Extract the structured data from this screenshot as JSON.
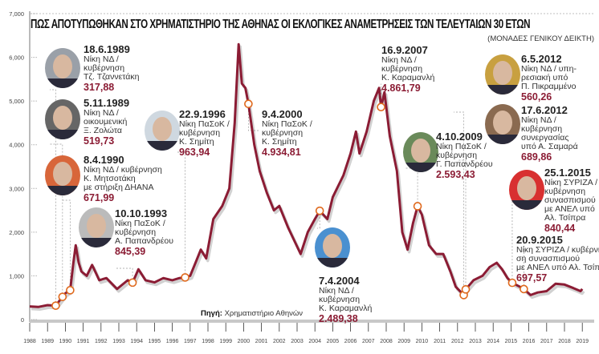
{
  "title": "ΠΩΣ ΑΠΟΤΥΠΩΘΗΚΑΝ ΣΤΟ ΧΡΗΜΑΤΙΣΤΗΡΙΟ ΤΗΣ ΑΘΗΝΑΣ ΟΙ ΕΚΛΟΓΙΚΕΣ ΑΝΑΜΕΤΡΗΣΕΙΣ ΤΩΝ ΤΕΛΕΥΤΑΙΩΝ 30 ΕΤΩΝ",
  "subtitle": "(ΜΟΝΑΔΕΣ ΓΕΝΙΚΟΥ ΔΕΙΚΤΗ)",
  "source_label": "Πηγή:",
  "source_text": "Χρηματιστήριο Αθηνών",
  "colors": {
    "line": "#8b1c34",
    "marker": "#e06a1e",
    "value": "#8b1c34",
    "grid": "#bbbbbb"
  },
  "chart_data": {
    "type": "line",
    "title": "ΠΩΣ ΑΠΟΤΥΠΩΘΗΚΑΝ ΣΤΟ ΧΡΗΜΑΤΙΣΤΗΡΙΟ ΤΗΣ ΑΘΗΝΑΣ ΟΙ ΕΚΛΟΓΙΚΕΣ ΑΝΑΜΕΤΡΗΣΕΙΣ ΤΩΝ ΤΕΛΕΥΤΑΙΩΝ 30 ΕΤΩΝ",
    "ylabel": "(ΜΟΝΑΔΕΣ ΓΕΝΙΚΟΥ ΔΕΙΚΤΗ)",
    "xlim": [
      1988,
      2019
    ],
    "ylim": [
      0,
      7000
    ],
    "yticks": [
      "0",
      "1,000",
      "2,000",
      "3,000",
      "4,000",
      "5,000",
      "6,000",
      "7,000"
    ],
    "xticks": [
      "1988",
      "1989",
      "1990",
      "1991",
      "1992",
      "1993",
      "1994",
      "1995",
      "1996",
      "1997",
      "1998",
      "1999",
      "2000",
      "2001",
      "2002",
      "2003",
      "2004",
      "2005",
      "2006",
      "2007",
      "2008",
      "2009",
      "2010",
      "2011",
      "2012",
      "2013",
      "2014",
      "2015",
      "2016",
      "2017",
      "2018",
      "2019"
    ],
    "grid": false,
    "series": [
      {
        "x": [
          1988.0,
          1988.5,
          1989.0,
          1989.46,
          1989.84,
          1990.0,
          1990.27,
          1990.45,
          1990.58,
          1990.75,
          1990.9,
          1991.2,
          1991.5,
          1991.9,
          1992.3,
          1992.9,
          1993.5,
          1993.77,
          1994.1,
          1994.5,
          1995.0,
          1995.5,
          1996.0,
          1996.4,
          1996.72,
          1997.0,
          1997.3,
          1997.6,
          1997.9,
          1998.3,
          1998.8,
          1999.2,
          1999.5,
          1999.72,
          1999.9,
          2000.1,
          2000.27,
          2000.6,
          2000.9,
          2001.3,
          2001.7,
          2002.0,
          2002.5,
          2003.2,
          2003.6,
          2004.0,
          2004.27,
          2004.7,
          2005.0,
          2005.6,
          2006.0,
          2006.3,
          2006.5,
          2006.9,
          2007.3,
          2007.6,
          2007.71,
          2007.9,
          2008.2,
          2008.6,
          2008.9,
          2009.2,
          2009.5,
          2009.76,
          2010.0,
          2010.4,
          2010.8,
          2011.2,
          2011.6,
          2011.9,
          2012.35,
          2012.46,
          2012.9,
          2013.4,
          2013.8,
          2014.2,
          2014.5,
          2014.8,
          2015.07,
          2015.5,
          2015.72,
          2016.1,
          2016.5,
          2017.0,
          2017.5,
          2018.0,
          2018.5,
          2018.9,
          2019.0
        ],
        "y": [
          300,
          290,
          330,
          318,
          520,
          600,
          672,
          1300,
          1700,
          1300,
          1100,
          1000,
          1250,
          900,
          950,
          700,
          900,
          845,
          1150,
          900,
          850,
          950,
          900,
          950,
          964,
          1000,
          1300,
          1600,
          1400,
          2300,
          2600,
          3000,
          4500,
          6300,
          5400,
          5300,
          4935,
          4000,
          3400,
          2900,
          2500,
          2600,
          2100,
          1500,
          2000,
          2300,
          2489,
          2300,
          2800,
          3300,
          3800,
          4300,
          3800,
          4300,
          5000,
          5300,
          4862,
          5200,
          4200,
          3400,
          2000,
          1600,
          2200,
          2593,
          2400,
          1700,
          1500,
          1500,
          1100,
          750,
          560,
          690,
          900,
          1000,
          1200,
          1300,
          1150,
          950,
          840,
          750,
          698,
          560,
          620,
          650,
          820,
          800,
          720,
          650,
          700
        ]
      }
    ],
    "annotations": [
      {
        "date": "18.6.1989",
        "t": 1989.46,
        "lines": [
          "Νίκη ΝΔ /",
          "κυβέρνηση",
          "Τζ. Τζαννετάκη"
        ],
        "value": "317,88",
        "v": 317.88
      },
      {
        "date": "5.11.1989",
        "t": 1989.84,
        "lines": [
          "Νίκη ΝΔ /",
          "οικουμενική",
          "Ξ. Ζολώτα"
        ],
        "value": "519,73",
        "v": 519.73
      },
      {
        "date": "8.4.1990",
        "t": 1990.27,
        "lines": [
          "Νίκη ΝΔ / κυβέρνηση",
          "Κ. Μητσοτάκη",
          "με στήριξη ΔΗΑΝΑ"
        ],
        "value": "671,99",
        "v": 671.99
      },
      {
        "date": "10.10.1993",
        "t": 1993.77,
        "lines": [
          "Νίκη ΠαΣοΚ /",
          "κυβέρνηση",
          "Α. Παπανδρέου"
        ],
        "value": "845,39",
        "v": 845.39
      },
      {
        "date": "22.9.1996",
        "t": 1996.72,
        "lines": [
          "Νίκη ΠαΣοΚ /",
          "κυβέρνηση",
          "Κ. Σημίτη"
        ],
        "value": "963,94",
        "v": 963.94
      },
      {
        "date": "9.4.2000",
        "t": 2000.27,
        "lines": [
          "Νίκη ΠαΣοΚ /",
          "κυβέρνηση",
          "Κ. Σημίτη"
        ],
        "value": "4.934,81",
        "v": 4934.81
      },
      {
        "date": "7.4.2004",
        "t": 2004.27,
        "lines": [
          "Νίκη ΝΔ /",
          "κυβέρνηση",
          "Κ. Καραμανλή"
        ],
        "value": "2.489,38",
        "v": 2489.38
      },
      {
        "date": "16.9.2007",
        "t": 2007.71,
        "lines": [
          "Νίκη ΝΔ /",
          "κυβέρνηση",
          "Κ. Καραμανλή"
        ],
        "value": "4.861,79",
        "v": 4861.79
      },
      {
        "date": "4.10.2009",
        "t": 2009.76,
        "lines": [
          "Νίκη ΠαΣοΚ /",
          "κυβέρνηση",
          "Γ. Παπανδρέου"
        ],
        "value": "2.593,43",
        "v": 2593.43
      },
      {
        "date": "6.5.2012",
        "t": 2012.35,
        "lines": [
          "Νίκη ΝΔ / υπη-",
          "ρεσιακή υπό",
          "Π. Πικραμμένο"
        ],
        "value": "560,26",
        "v": 560.26
      },
      {
        "date": "17.6.2012",
        "t": 2012.46,
        "lines": [
          "Νίκη ΝΔ /",
          "κυβέρνηση",
          "συνεργασίας",
          "υπό Α. Σαμαρά"
        ],
        "value": "689,86",
        "v": 689.86
      },
      {
        "date": "25.1.2015",
        "t": 2015.07,
        "lines": [
          "Νίκη ΣΥΡΙΖΑ /",
          "κυβέρνηση",
          "συνασπισμού",
          "με ΑΝΕΛ υπό",
          "Αλ. Τσίπρα"
        ],
        "value": "840,44",
        "v": 840.44
      },
      {
        "date": "20.9.2015",
        "t": 2015.72,
        "lines": [
          "Νίκη ΣΥΡΙΖΑ / κυβέρνη-",
          "ση συνασπισμού",
          "με ΑΝΕΛ υπό Αλ. Τσίπρα"
        ],
        "value": "697,57",
        "v": 697.57
      }
    ]
  }
}
